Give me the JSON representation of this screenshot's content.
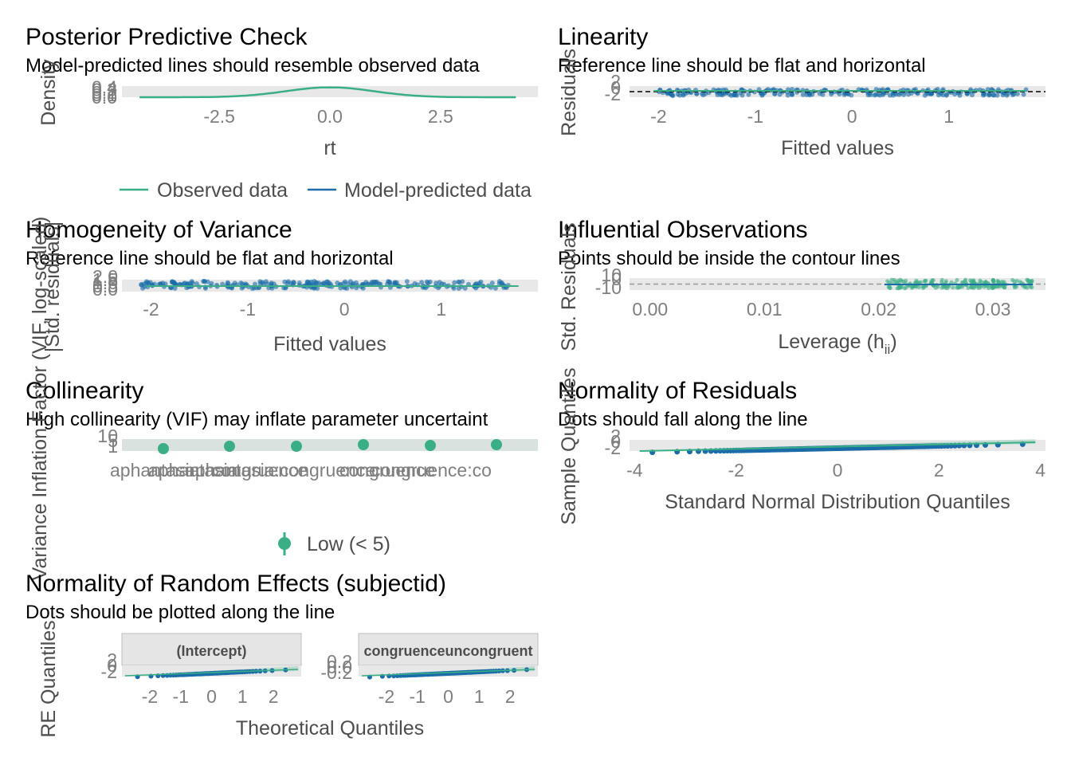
{
  "colors": {
    "green": "#3aaf85",
    "blue": "#1b6ca8",
    "panel_bg": "#e8e8e8",
    "strip_bg": "#e5e5e5",
    "text_dark": "#4d4d4d",
    "tick_grey": "#7f7f7f"
  },
  "chart_data": [
    {
      "id": "ppc",
      "type": "line",
      "title": "Posterior Predictive Check",
      "subtitle": "Model-predicted lines should resemble observed data",
      "xlabel": "rt",
      "ylabel": "Density",
      "x_ticks": [
        "-2.5",
        "0.0",
        "2.5"
      ],
      "y_ticks": [
        "0.0",
        "0.1",
        "0.2",
        "0.3",
        "0.4"
      ],
      "xlim": [
        -4.7,
        4.7
      ],
      "ylim": [
        0,
        0.45
      ],
      "legend": [
        "Observed data",
        "Model-predicted data"
      ],
      "legend_position": "bottom",
      "series": [
        {
          "name": "Observed data",
          "color": "#3aaf85"
        },
        {
          "name": "Model-predicted data",
          "color": "#1b6ca8"
        }
      ]
    },
    {
      "id": "linearity",
      "type": "scatter",
      "title": "Linearity",
      "subtitle": "Reference line should be flat and horizontal",
      "xlabel": "Fitted values",
      "ylabel": "Residuals",
      "x_ticks": [
        "-2",
        "-1",
        "0",
        "1"
      ],
      "y_ticks": [
        "-2",
        "0",
        "2"
      ],
      "xlim": [
        -2.3,
        2.0
      ],
      "x_range": [
        -2.0,
        1.8
      ]
    },
    {
      "id": "homogeneity",
      "type": "scatter",
      "title": "Homogeneity of Variance",
      "subtitle": "Reference line should be flat and horizontal",
      "xlabel": "Fitted values",
      "ylabel": "|Std. residuals|",
      "x_ticks": [
        "-2",
        "-1",
        "0",
        "1"
      ],
      "y_ticks": [
        "0.0",
        "0.5",
        "1.0",
        "1.5",
        "2.0"
      ],
      "xlim": [
        -2.3,
        2.0
      ],
      "x_range": [
        -2.1,
        1.8
      ]
    },
    {
      "id": "influential",
      "type": "scatter",
      "title": "Influential Observations",
      "subtitle": "Points should be inside the contour lines",
      "xlabel": "Leverage (h",
      "xlabel_sub": "ii",
      "xlabel_end": ")",
      "ylabel": "Std. Residuals",
      "x_ticks": [
        "0.00",
        "0.01",
        "0.02",
        "0.03"
      ],
      "y_ticks": [
        "-10",
        "0",
        "10"
      ],
      "xlim": [
        -0.0018,
        0.0346
      ],
      "x_range": [
        0.0205,
        0.0335
      ]
    },
    {
      "id": "collinearity",
      "type": "scatter",
      "title": "Collinearity",
      "subtitle": "High collinearity (VIF) may inflate parameter uncertaint",
      "xlabel": "",
      "ylabel": "Variance Inflation Factor (VIF, log-scaled)",
      "y_ticks": [
        "1",
        "5",
        "10"
      ],
      "categories": [
        "aphantasia",
        "aphantasia",
        "aphantasia:congruence",
        "congruence",
        "congruence",
        "congruence:co"
      ],
      "values": [
        1,
        1,
        1,
        1,
        1,
        1
      ],
      "legend": [
        "Low (< 5)"
      ],
      "legend_position": "bottom"
    },
    {
      "id": "normality_residuals",
      "type": "scatter",
      "title": "Normality of Residuals",
      "subtitle": "Dots should fall along the line",
      "xlabel": "Standard Normal Distribution Quantiles",
      "ylabel": "Sample Quantiles",
      "x_ticks": [
        "-4",
        "-2",
        "0",
        "2",
        "4"
      ],
      "y_ticks": [
        "-2",
        "0",
        "2"
      ],
      "xlim": [
        -4.1,
        4.1
      ]
    },
    {
      "id": "normality_re",
      "type": "scatter",
      "title": "Normality of Random Effects (subjectid)",
      "subtitle": "Dots should be plotted along the line",
      "xlabel": "Theoretical Quantiles",
      "ylabel": "RE Quantiles",
      "facets": [
        {
          "label": "(Intercept)",
          "x_ticks": [
            "-2",
            "-1",
            "0",
            "1",
            "2"
          ],
          "y_ticks": [
            "-2",
            "0",
            "2"
          ]
        },
        {
          "label": "congruenceuncongruent",
          "x_ticks": [
            "-2",
            "-1",
            "0",
            "1",
            "2"
          ],
          "y_ticks": [
            "-0.2",
            "0.0",
            "0.2"
          ]
        }
      ],
      "xlim": [
        -2.9,
        2.9
      ]
    }
  ]
}
